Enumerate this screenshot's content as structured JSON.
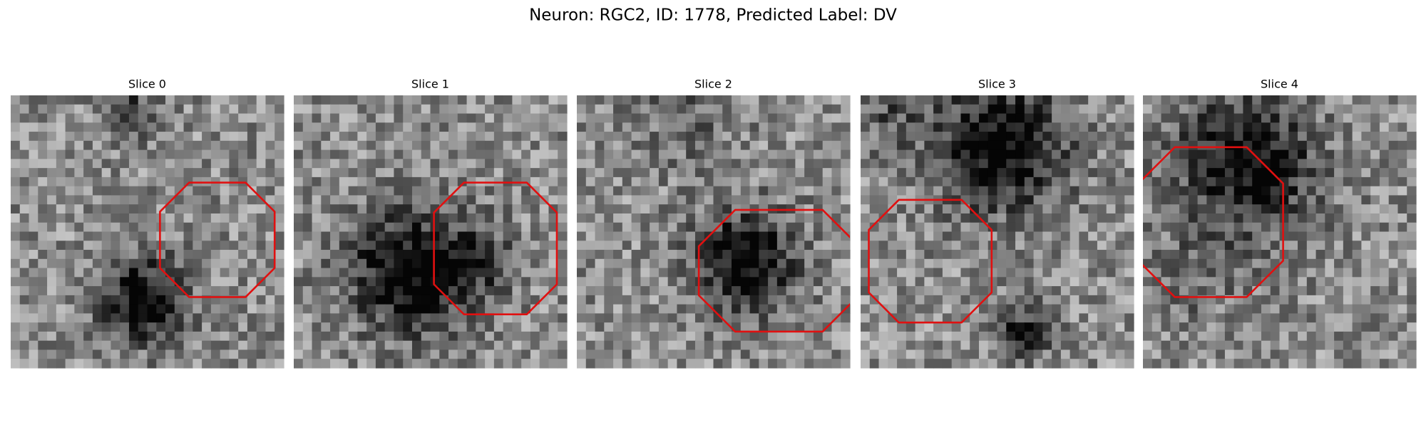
{
  "title": "Neuron: RGC2, ID: 1778, Predicted Label: DV",
  "panels": [
    {
      "title": "Slice 0"
    },
    {
      "title": "Slice 1"
    },
    {
      "title": "Slice 2"
    },
    {
      "title": "Slice 3"
    },
    {
      "title": "Slice 4"
    }
  ]
}
